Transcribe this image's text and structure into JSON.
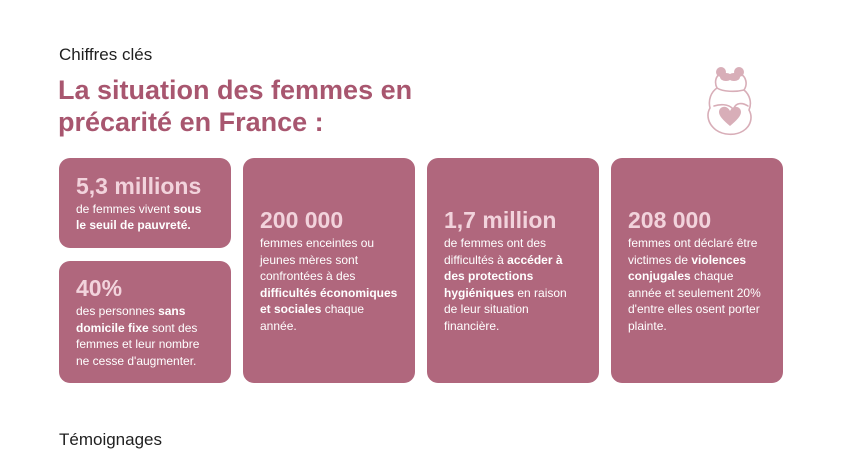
{
  "section": {
    "label": "Chiffres clés"
  },
  "title": "La situation des femmes en précarité en France :",
  "cards": [
    {
      "value": "5,3 millions",
      "text_a": "de femmes vivent ",
      "bold_a": "sous le seuil de pauvreté."
    },
    {
      "value": "40%",
      "text_a": "des personnes ",
      "bold_a": "sans domicile fixe",
      "text_b": " sont des femmes et leur nombre ne cesse d'augmenter."
    },
    {
      "value": "200 000",
      "text_a": "femmes enceintes ou jeunes mères sont confrontées à des ",
      "bold_a": "difficultés économiques et sociales",
      "text_b": " chaque année."
    },
    {
      "value": "1,7 million",
      "text_a": "de femmes ont des difficultés à ",
      "bold_a": "accéder à des protections hygiéniques",
      "text_b": " en raison de leur situation financière."
    },
    {
      "value": "208 000",
      "text_a": "femmes ont déclaré être victimes de ",
      "bold_a": "violences conjugales",
      "text_b": " chaque année et seulement 20% d'entre elles osent porter plainte."
    }
  ],
  "next_section": {
    "label": "Témoignages"
  },
  "colors": {
    "accent_title": "#a8566f",
    "card_bg": "#b0677d",
    "card_value": "#f2d3dc",
    "illustration": "#d8aeb8"
  },
  "icons": {
    "illustration": "pregnant-woman-heart-icon"
  }
}
